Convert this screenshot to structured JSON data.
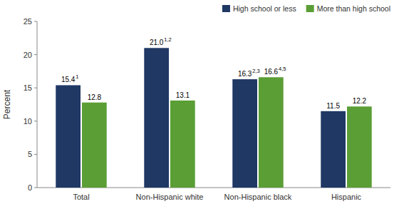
{
  "chart_data": {
    "type": "bar",
    "categories": [
      "Total",
      "Non-Hispanic white",
      "Non-Hispanic black",
      "Hispanic"
    ],
    "series": [
      {
        "name": "High school or less",
        "color": "#1f3864",
        "values": [
          15.4,
          21.0,
          16.3,
          11.5
        ],
        "value_labels": [
          "15.4",
          "21.0",
          "16.3",
          "11.5"
        ],
        "notes": [
          "1",
          "1,2",
          "2,3",
          null
        ]
      },
      {
        "name": "More than high school",
        "color": "#5a9e35",
        "values": [
          12.8,
          13.1,
          16.6,
          12.2
        ],
        "value_labels": [
          "12.8",
          "13.1",
          "16.6",
          "12.2"
        ],
        "notes": [
          null,
          null,
          "4,5",
          null
        ]
      }
    ],
    "y_label": "Percent",
    "ylim": [
      0,
      25
    ],
    "yticks": [
      0,
      5,
      10,
      15,
      20,
      25
    ],
    "grid": false,
    "legend": "upper right",
    "data_labels": true
  }
}
